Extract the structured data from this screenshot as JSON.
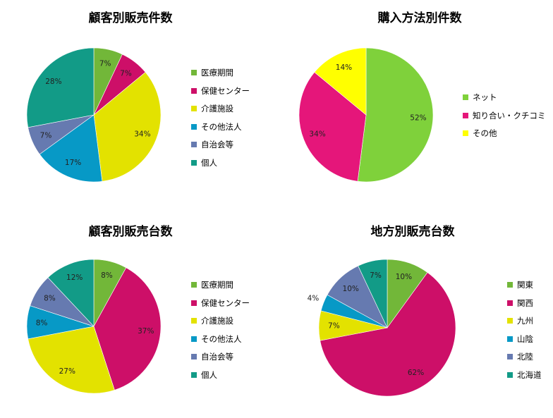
{
  "colors": {
    "green": "#72b739",
    "magenta": "#cd0f68",
    "yellow": "#e3e200",
    "cyan": "#0799c6",
    "slate": "#667ab0",
    "teal": "#129b87",
    "lime": "#7fd13b",
    "pink": "#e5167a",
    "bright_yellow": "#ffff00"
  },
  "chart_data": [
    {
      "type": "pie",
      "title": "顧客別販売件数",
      "labels": [
        "医療期間",
        "保健センター",
        "介護施設",
        "その他法人",
        "自治会等",
        "個人"
      ],
      "values": [
        7,
        7,
        34,
        17,
        7,
        28
      ],
      "data_labels": [
        "7%",
        "7%",
        "34%",
        "17%",
        "7%",
        "28%"
      ],
      "colors": [
        "#72b739",
        "#cd0f68",
        "#e3e200",
        "#0799c6",
        "#667ab0",
        "#129b87"
      ],
      "legend_position": "right"
    },
    {
      "type": "pie",
      "title": "購入方法別件数",
      "labels": [
        "ネット",
        "知り合い・クチコミ",
        "その他"
      ],
      "values": [
        52,
        34,
        14
      ],
      "data_labels": [
        "52%",
        "34%",
        "14%"
      ],
      "colors": [
        "#7fd13b",
        "#e5167a",
        "#ffff00"
      ],
      "legend_position": "right"
    },
    {
      "type": "pie",
      "title": "顧客別販売台数",
      "labels": [
        "医療期間",
        "保健センター",
        "介護施設",
        "その他法人",
        "自治会等",
        "個人"
      ],
      "values": [
        8,
        37,
        27,
        8,
        8,
        12
      ],
      "data_labels": [
        "8%",
        "37%",
        "27%",
        "8%",
        "8%",
        "12%"
      ],
      "colors": [
        "#72b739",
        "#cd0f68",
        "#e3e200",
        "#0799c6",
        "#667ab0",
        "#129b87"
      ],
      "legend_position": "right"
    },
    {
      "type": "pie",
      "title": "地方別販売台数",
      "labels": [
        "関東",
        "関西",
        "九州",
        "山陰",
        "北陸",
        "北海道"
      ],
      "values": [
        10,
        62,
        7,
        4,
        10,
        7
      ],
      "data_labels": [
        "10%",
        "62%",
        "7%",
        "4%",
        "10%",
        "7%"
      ],
      "colors": [
        "#72b739",
        "#cd0f68",
        "#e3e200",
        "#0799c6",
        "#667ab0",
        "#129b87"
      ],
      "legend_position": "right"
    }
  ]
}
